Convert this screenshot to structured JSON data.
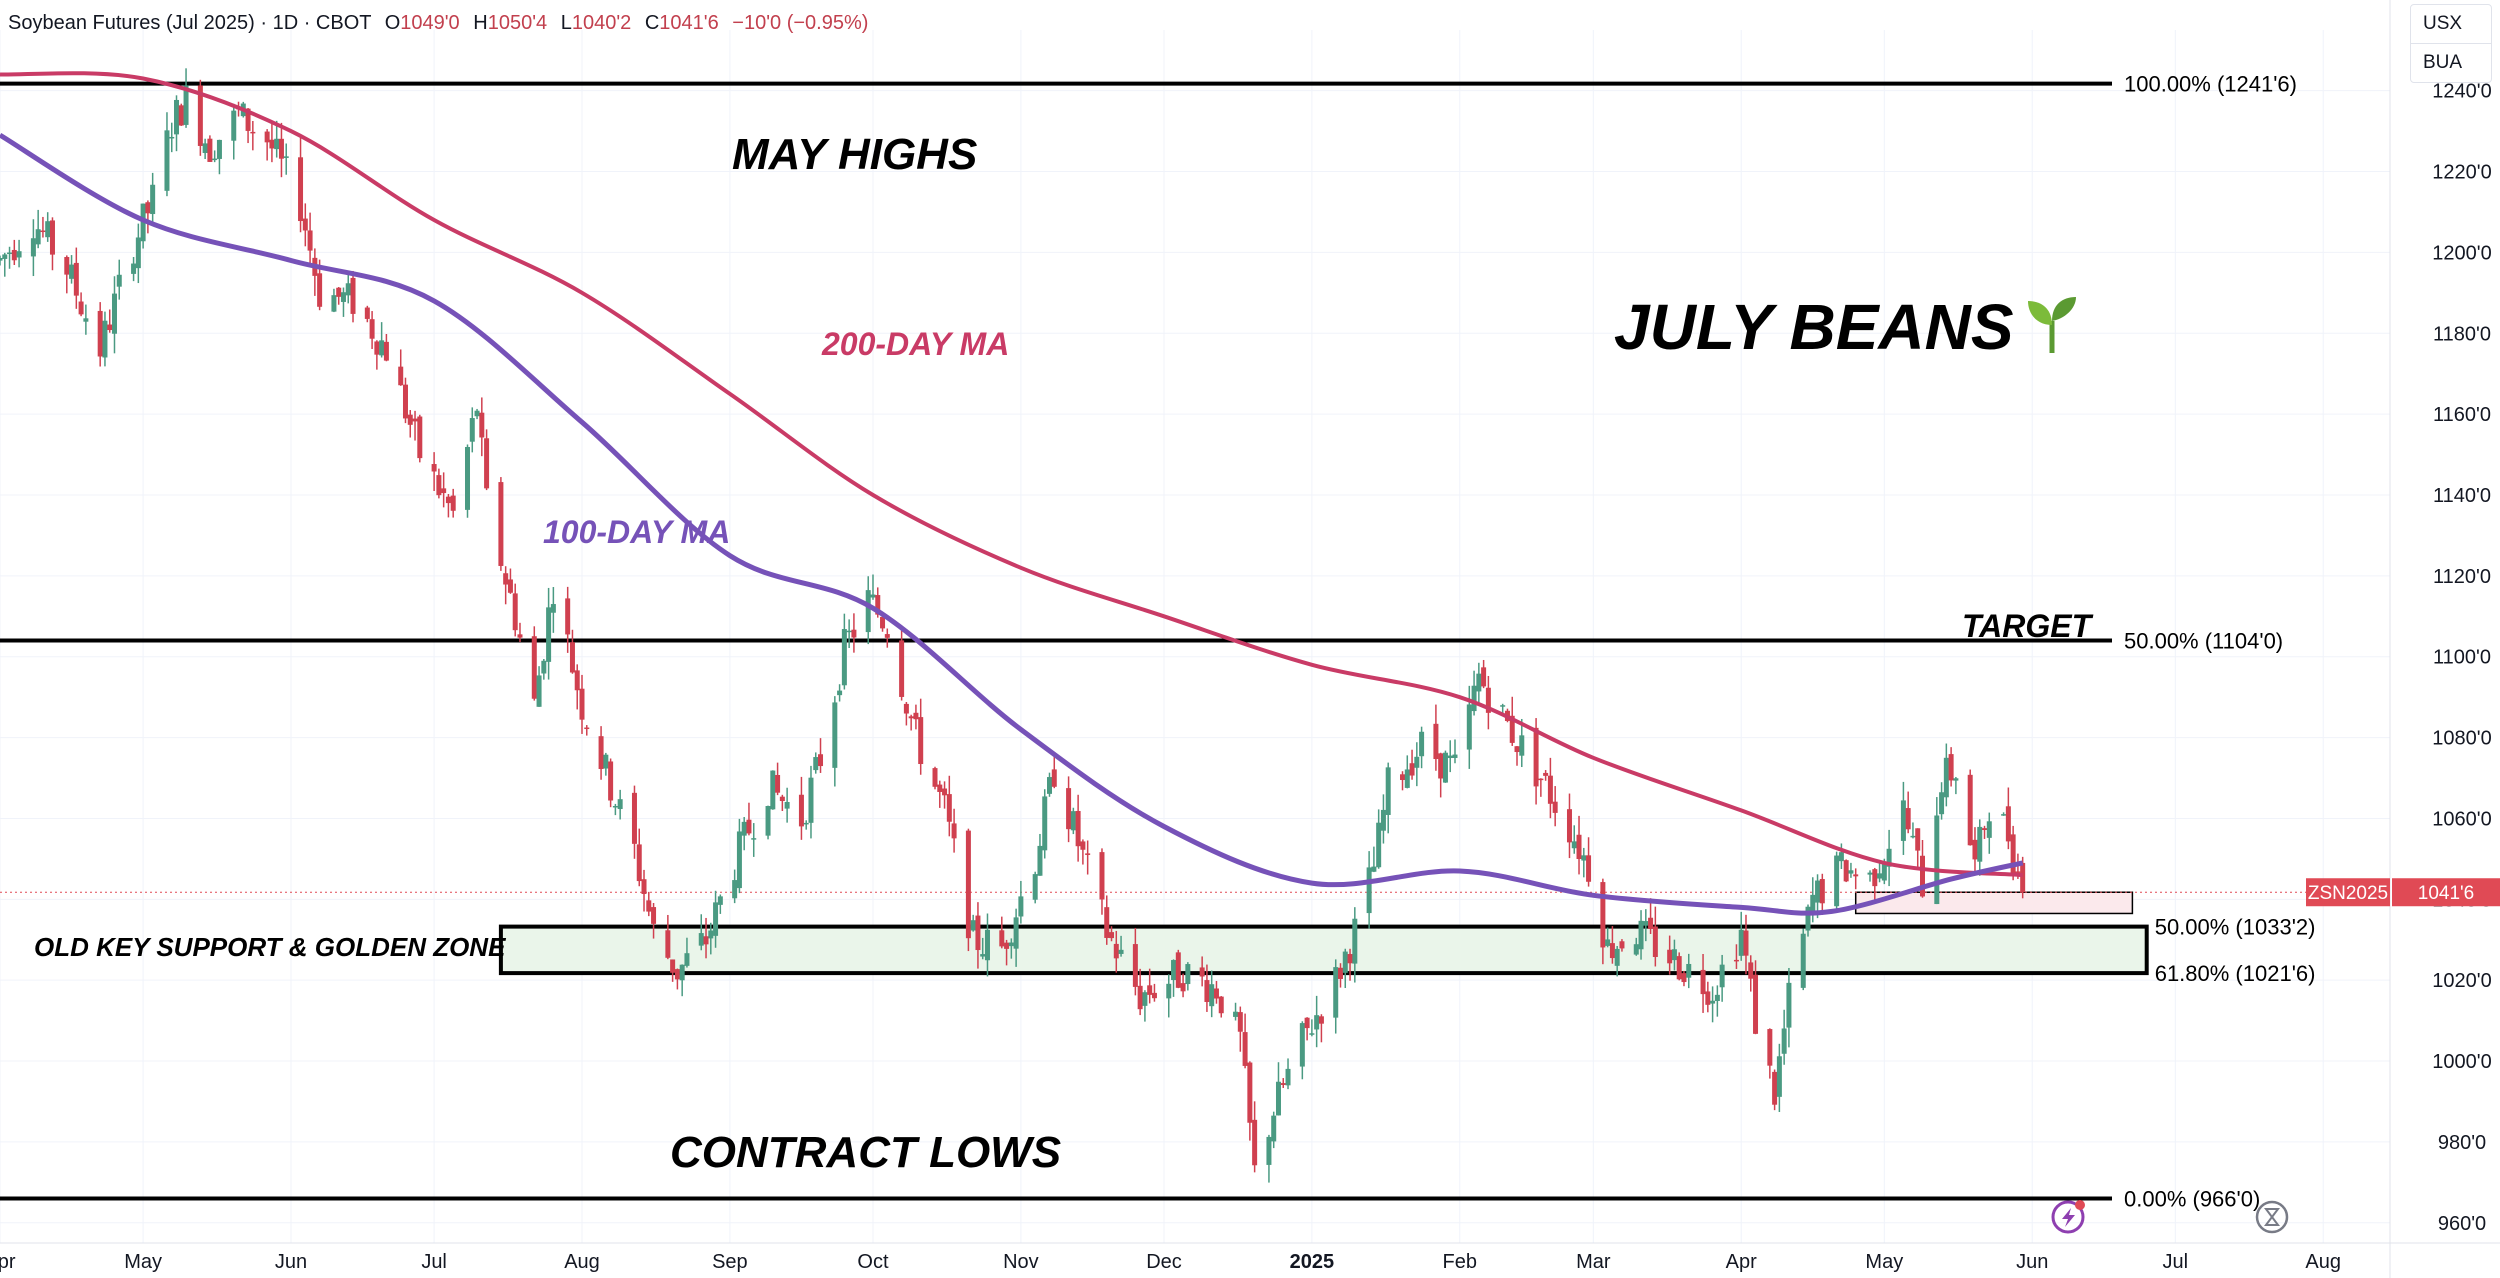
{
  "header": {
    "symbol_desc": "Soybean Futures (Jul 2025) · 1D · CBOT",
    "open_label": "O",
    "open": "1049'0",
    "high_label": "H",
    "high": "1050'4",
    "low_label": "L",
    "low": "1040'2",
    "close_label": "C",
    "close": "1041'6",
    "change": "−10'0 (−0.95%)"
  },
  "currency": {
    "unit": "USX",
    "sub": "BUA"
  },
  "colors": {
    "up": "#4a9a82",
    "down": "#d0404f",
    "ma200": "#c93b66",
    "ma100": "#7652b8",
    "zone_fill": "#eaf5ea",
    "price_tag": "#e04a55"
  },
  "annotations": {
    "may_highs": "MAY HIGHS",
    "july_beans": "JULY BEANS",
    "ma200": "200-DAY MA",
    "ma100": "100-DAY MA",
    "target": "TARGET",
    "support": "OLD KEY SUPPORT & GOLDEN ZONE",
    "contract_lows": "CONTRACT LOWS"
  },
  "chart_data": {
    "type": "candlestick",
    "x_range": [
      "2024-04-01",
      "2025-08-15"
    ],
    "y_range": [
      955,
      1255
    ],
    "grid": true,
    "y_ticks": [
      {
        "value": 960,
        "label": "960'0"
      },
      {
        "value": 980,
        "label": "980'0"
      },
      {
        "value": 1000,
        "label": "1000'0"
      },
      {
        "value": 1020,
        "label": "1020'0"
      },
      {
        "value": 1040,
        "label": "1040'0"
      },
      {
        "value": 1060,
        "label": "1060'0"
      },
      {
        "value": 1080,
        "label": "1080'0"
      },
      {
        "value": 1100,
        "label": "1100'0"
      },
      {
        "value": 1120,
        "label": "1120'0"
      },
      {
        "value": 1140,
        "label": "1140'0"
      },
      {
        "value": 1160,
        "label": "1160'0"
      },
      {
        "value": 1180,
        "label": "1180'0"
      },
      {
        "value": 1200,
        "label": "1200'0"
      },
      {
        "value": 1220,
        "label": "1220'0"
      },
      {
        "value": 1240,
        "label": "1240'0"
      }
    ],
    "x_ticks": [
      {
        "date": "2024-04-01",
        "label": "Apr"
      },
      {
        "date": "2024-05-01",
        "label": "May"
      },
      {
        "date": "2024-06-01",
        "label": "Jun"
      },
      {
        "date": "2024-07-01",
        "label": "Jul"
      },
      {
        "date": "2024-08-01",
        "label": "Aug"
      },
      {
        "date": "2024-09-01",
        "label": "Sep"
      },
      {
        "date": "2024-10-01",
        "label": "Oct"
      },
      {
        "date": "2024-11-01",
        "label": "Nov"
      },
      {
        "date": "2024-12-01",
        "label": "Dec"
      },
      {
        "date": "2025-01-01",
        "label": "2025"
      },
      {
        "date": "2025-02-01",
        "label": "Feb"
      },
      {
        "date": "2025-03-01",
        "label": "Mar"
      },
      {
        "date": "2025-04-01",
        "label": "Apr"
      },
      {
        "date": "2025-05-01",
        "label": "May"
      },
      {
        "date": "2025-06-01",
        "label": "Jun"
      },
      {
        "date": "2025-07-01",
        "label": "Jul"
      },
      {
        "date": "2025-08-01",
        "label": "Aug"
      }
    ],
    "fib_levels": [
      {
        "value": 1241.75,
        "label": "100.00% (1241'6)"
      },
      {
        "value": 1104,
        "label": "50.00% (1104'0)"
      },
      {
        "value": 966,
        "label": "0.00% (966'0)"
      }
    ],
    "zone": {
      "from": "2024-07-15",
      "to": "2025-06-25",
      "high": 1033.25,
      "low": 1021.75,
      "high_label": "50.00% (1033'2)",
      "low_label": "61.80% (1021'6)"
    },
    "recent_box": {
      "from": "2025-04-25",
      "to": "2025-06-22",
      "high": 1041.75,
      "low": 1036.5
    },
    "last_price": {
      "value": 1041.75,
      "symbol": "ZSN2025",
      "label": "1041'6"
    },
    "price_path": [
      [
        "2024-04-01",
        1198
      ],
      [
        "2024-04-08",
        1208
      ],
      [
        "2024-04-15",
        1196
      ],
      [
        "2024-04-22",
        1176
      ],
      [
        "2024-04-29",
        1202
      ],
      [
        "2024-05-03",
        1213
      ],
      [
        "2024-05-07",
        1232
      ],
      [
        "2024-05-10",
        1238
      ],
      [
        "2024-05-15",
        1226
      ],
      [
        "2024-05-21",
        1234
      ],
      [
        "2024-05-27",
        1228
      ],
      [
        "2024-06-03",
        1212
      ],
      [
        "2024-06-07",
        1190
      ],
      [
        "2024-06-14",
        1188
      ],
      [
        "2024-06-21",
        1176
      ],
      [
        "2024-06-28",
        1150
      ],
      [
        "2024-07-05",
        1135
      ],
      [
        "2024-07-10",
        1162
      ],
      [
        "2024-07-12",
        1138
      ],
      [
        "2024-07-18",
        1110
      ],
      [
        "2024-07-22",
        1088
      ],
      [
        "2024-07-26",
        1118
      ],
      [
        "2024-08-01",
        1088
      ],
      [
        "2024-08-07",
        1068
      ],
      [
        "2024-08-12",
        1052
      ],
      [
        "2024-08-16",
        1032
      ],
      [
        "2024-08-21",
        1022
      ],
      [
        "2024-08-27",
        1030
      ],
      [
        "2024-09-03",
        1052
      ],
      [
        "2024-09-09",
        1068
      ],
      [
        "2024-09-16",
        1060
      ],
      [
        "2024-09-20",
        1075
      ],
      [
        "2024-09-25",
        1102
      ],
      [
        "2024-09-30",
        1114
      ],
      [
        "2024-10-04",
        1108
      ],
      [
        "2024-10-10",
        1080
      ],
      [
        "2024-10-16",
        1062
      ],
      [
        "2024-10-22",
        1030
      ],
      [
        "2024-10-28",
        1028
      ],
      [
        "2024-11-04",
        1050
      ],
      [
        "2024-11-08",
        1072
      ],
      [
        "2024-11-13",
        1054
      ],
      [
        "2024-11-19",
        1032
      ],
      [
        "2024-11-26",
        1016
      ],
      [
        "2024-12-05",
        1022
      ],
      [
        "2024-12-12",
        1018
      ],
      [
        "2024-12-17",
        1005
      ],
      [
        "2024-12-20",
        972
      ],
      [
        "2024-12-24",
        988
      ],
      [
        "2024-12-30",
        1005
      ],
      [
        "2025-01-06",
        1020
      ],
      [
        "2025-01-10",
        1032
      ],
      [
        "2025-01-14",
        1048
      ],
      [
        "2025-01-17",
        1068
      ],
      [
        "2025-01-24",
        1078
      ],
      [
        "2025-01-31",
        1072
      ],
      [
        "2025-02-05",
        1095
      ],
      [
        "2025-02-10",
        1085
      ],
      [
        "2025-02-18",
        1070
      ],
      [
        "2025-02-24",
        1058
      ],
      [
        "2025-02-28",
        1048
      ],
      [
        "2025-03-04",
        1028
      ],
      [
        "2025-03-10",
        1032
      ],
      [
        "2025-03-18",
        1025
      ],
      [
        "2025-03-26",
        1018
      ],
      [
        "2025-04-01",
        1032
      ],
      [
        "2025-04-04",
        1010
      ],
      [
        "2025-04-08",
        992
      ],
      [
        "2025-04-11",
        1015
      ],
      [
        "2025-04-16",
        1040
      ],
      [
        "2025-04-22",
        1048
      ],
      [
        "2025-04-28",
        1045
      ],
      [
        "2025-05-05",
        1062
      ],
      [
        "2025-05-09",
        1044
      ],
      [
        "2025-05-13",
        1070
      ],
      [
        "2025-05-16",
        1072
      ],
      [
        "2025-05-20",
        1048
      ],
      [
        "2025-05-23",
        1064
      ],
      [
        "2025-05-27",
        1056
      ],
      [
        "2025-05-30",
        1041.75
      ]
    ],
    "ma200": [
      [
        "2024-04-01",
        1244
      ],
      [
        "2024-05-01",
        1243
      ],
      [
        "2024-06-01",
        1230
      ],
      [
        "2024-07-01",
        1208
      ],
      [
        "2024-08-01",
        1190
      ],
      [
        "2024-09-01",
        1165
      ],
      [
        "2024-10-01",
        1140
      ],
      [
        "2024-11-01",
        1122
      ],
      [
        "2024-12-01",
        1110
      ],
      [
        "2025-01-01",
        1098
      ],
      [
        "2025-02-01",
        1090
      ],
      [
        "2025-03-01",
        1075
      ],
      [
        "2025-04-01",
        1062
      ],
      [
        "2025-05-01",
        1049
      ],
      [
        "2025-05-30",
        1046
      ]
    ],
    "ma100": [
      [
        "2024-04-01",
        1229
      ],
      [
        "2024-05-01",
        1208
      ],
      [
        "2024-06-01",
        1198
      ],
      [
        "2024-07-01",
        1188
      ],
      [
        "2024-08-01",
        1158
      ],
      [
        "2024-09-01",
        1125
      ],
      [
        "2024-10-01",
        1112
      ],
      [
        "2024-11-01",
        1082
      ],
      [
        "2024-12-01",
        1058
      ],
      [
        "2025-01-01",
        1044
      ],
      [
        "2025-02-01",
        1047
      ],
      [
        "2025-03-01",
        1041
      ],
      [
        "2025-04-01",
        1038
      ],
      [
        "2025-04-20",
        1037
      ],
      [
        "2025-05-15",
        1045
      ],
      [
        "2025-05-30",
        1049
      ]
    ]
  }
}
